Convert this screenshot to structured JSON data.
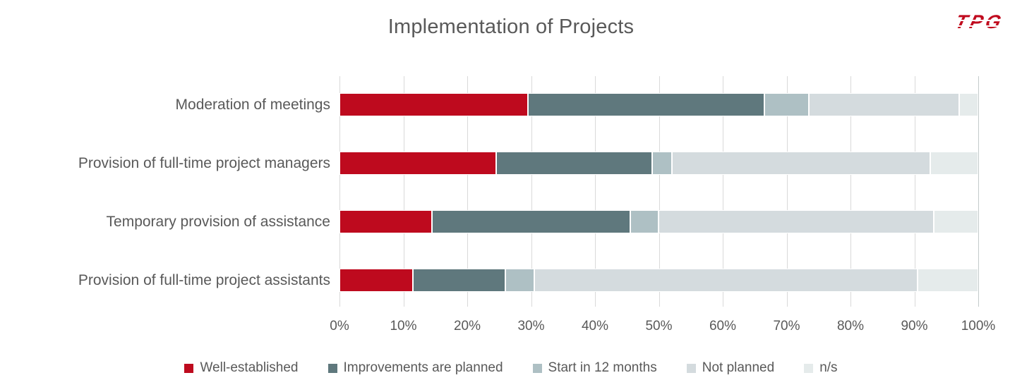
{
  "title": "Implementation of Projects",
  "logo": {
    "text": "TPG"
  },
  "colors": {
    "title_text": "#595959",
    "axis_text": "#595959",
    "gridline": "#D9D9D9",
    "logo_red": "#C00A1E",
    "background": "#FFFFFF"
  },
  "chart_data": {
    "type": "bar",
    "stacked": true,
    "orientation": "horizontal",
    "title": "Implementation of Projects",
    "categories": [
      "Moderation of meetings",
      "Provision of full-time project managers",
      "Temporary provision of assistance",
      "Provision of full-time project assistants"
    ],
    "series": [
      {
        "name": "Well-established",
        "color": "#BE0A1E",
        "values": [
          29.5,
          24.5,
          14.5,
          11.5
        ]
      },
      {
        "name": "Improvements are planned",
        "color": "#5F787D",
        "values": [
          37.0,
          24.5,
          31.0,
          14.5
        ]
      },
      {
        "name": "Start in 12 months",
        "color": "#AEC0C4",
        "values": [
          7.0,
          3.0,
          4.5,
          4.5
        ]
      },
      {
        "name": "Not planned",
        "color": "#D4DBDE",
        "values": [
          23.5,
          40.5,
          43.0,
          60.0
        ]
      },
      {
        "name": "n/s",
        "color": "#E5EBEB",
        "values": [
          3.0,
          7.5,
          7.0,
          9.5
        ]
      }
    ],
    "xlabel": "",
    "ylabel": "",
    "xlim": [
      0,
      100
    ],
    "x_ticks": [
      "0%",
      "10%",
      "20%",
      "30%",
      "40%",
      "50%",
      "60%",
      "70%",
      "80%",
      "90%",
      "100%"
    ],
    "grid": true,
    "legend_position": "bottom"
  }
}
